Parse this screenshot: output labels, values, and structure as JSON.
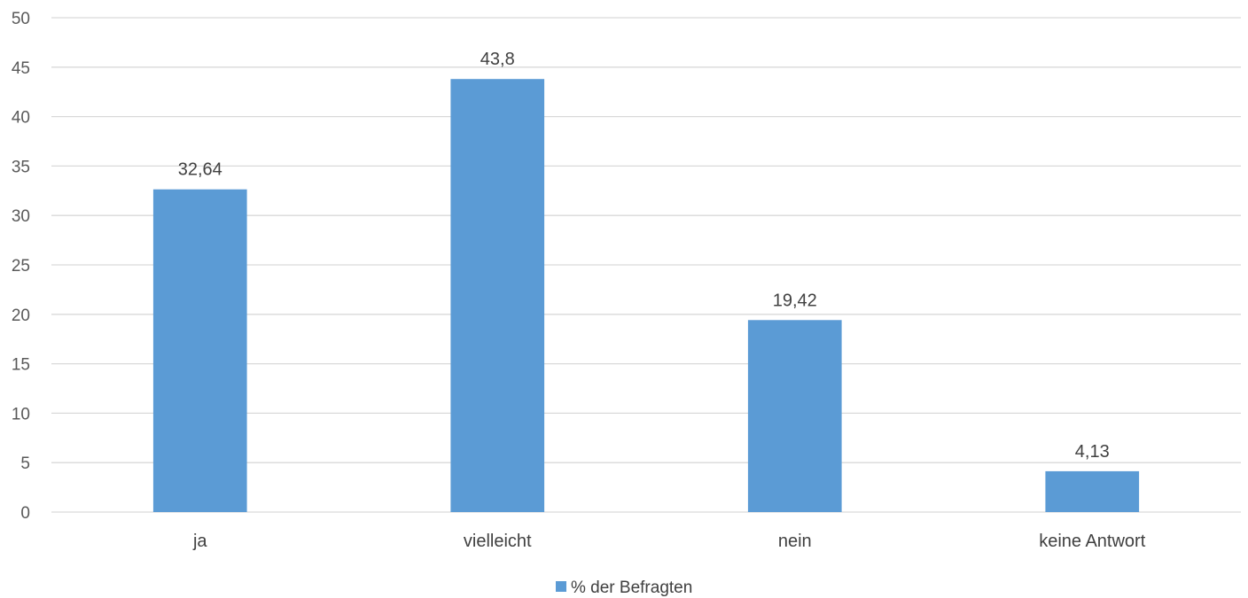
{
  "chart_data": {
    "type": "bar",
    "categories": [
      "ja",
      "vielleicht",
      "nein",
      "keine Antwort"
    ],
    "series": [
      {
        "name": "% der Befragten",
        "values": [
          32.64,
          43.8,
          19.42,
          4.13
        ],
        "labels": [
          "32,64",
          "43,8",
          "19,42",
          "4,13"
        ]
      }
    ],
    "ylim": [
      0,
      50
    ],
    "yticks": [
      0,
      5,
      10,
      15,
      20,
      25,
      30,
      35,
      40,
      45,
      50
    ],
    "grid": true,
    "legend_position": "bottom",
    "colors": {
      "bar": "#5b9bd5",
      "grid": "#d9d9d9"
    }
  }
}
